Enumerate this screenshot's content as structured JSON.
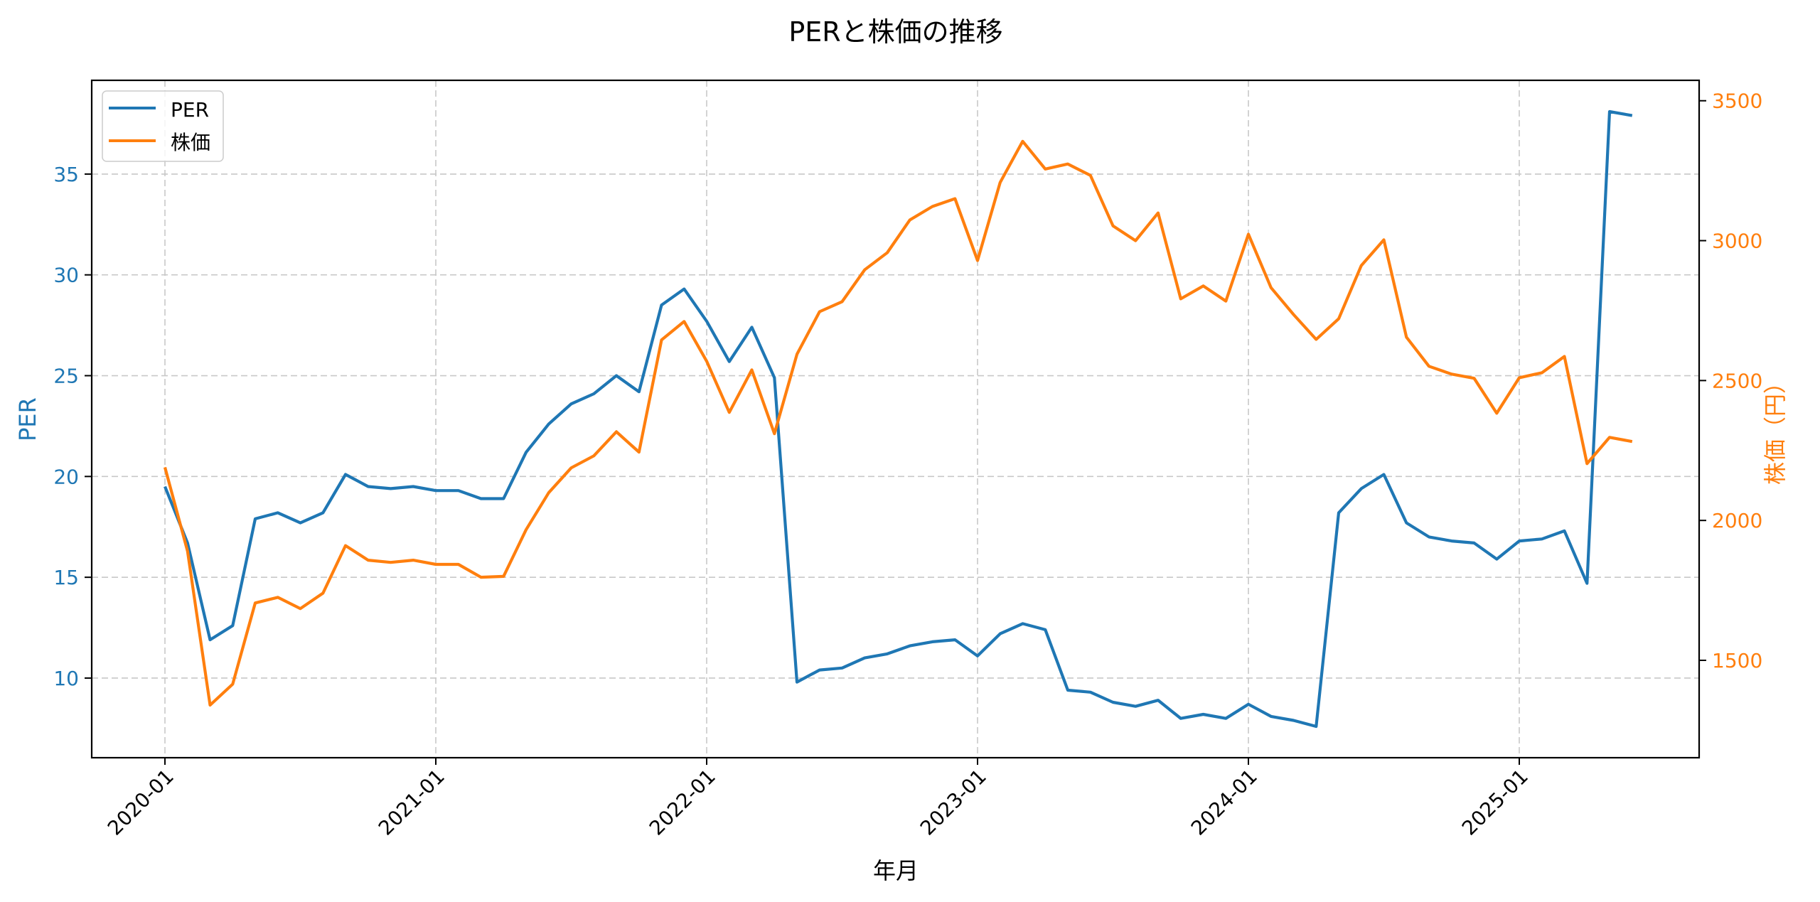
{
  "title": "PERと株価の推移",
  "colors": {
    "per": "#1f77b4",
    "price": "#ff7f0e",
    "grid": "#c8c8c8",
    "axis": "#000000",
    "background": "#ffffff"
  },
  "legend": {
    "items": [
      {
        "label": "PER",
        "color": "#1f77b4"
      },
      {
        "label": "株価",
        "color": "#ff7f0e"
      }
    ],
    "position": "upper left"
  },
  "axes": {
    "xlabel": "年月",
    "ylabel_left": "PER",
    "ylabel_right": "株価（円）",
    "xticks": [
      "2020-01",
      "2021-01",
      "2022-01",
      "2023-01",
      "2024-01",
      "2025-01"
    ],
    "yticks_left": [
      10,
      15,
      20,
      25,
      30,
      35
    ],
    "yticks_right": [
      1500,
      2000,
      2500,
      3000,
      3500
    ]
  },
  "chart_data": {
    "type": "line",
    "title": "PERと株価の推移",
    "xlabel": "年月",
    "ylabel": "PER",
    "ylabel_right": "株価（円）",
    "grid": true,
    "legend_position": "upper left",
    "ylim": [
      6.05,
      39.65
    ],
    "ylim_right": [
      1152,
      3573
    ],
    "x": [
      "2020-01",
      "2020-02",
      "2020-03",
      "2020-04",
      "2020-05",
      "2020-06",
      "2020-07",
      "2020-08",
      "2020-09",
      "2020-10",
      "2020-11",
      "2020-12",
      "2021-01",
      "2021-02",
      "2021-03",
      "2021-04",
      "2021-05",
      "2021-06",
      "2021-07",
      "2021-08",
      "2021-09",
      "2021-10",
      "2021-11",
      "2021-12",
      "2022-01",
      "2022-02",
      "2022-03",
      "2022-04",
      "2022-05",
      "2022-06",
      "2022-07",
      "2022-08",
      "2022-09",
      "2022-10",
      "2022-11",
      "2022-12",
      "2023-01",
      "2023-02",
      "2023-03",
      "2023-04",
      "2023-05",
      "2023-06",
      "2023-07",
      "2023-08",
      "2023-09",
      "2023-10",
      "2023-11",
      "2023-12",
      "2024-01",
      "2024-02",
      "2024-03",
      "2024-04",
      "2024-05",
      "2024-06",
      "2024-07",
      "2024-08",
      "2024-09",
      "2024-10",
      "2024-11",
      "2024-12",
      "2025-01",
      "2025-02",
      "2025-03",
      "2025-04",
      "2025-05",
      "2025-06"
    ],
    "series": [
      {
        "name": "PER",
        "axis": "left",
        "values": [
          19.5,
          16.7,
          11.9,
          12.6,
          17.9,
          18.2,
          17.7,
          18.2,
          20.1,
          19.5,
          19.4,
          19.5,
          19.3,
          19.3,
          18.9,
          18.9,
          21.2,
          22.6,
          23.6,
          24.1,
          25.0,
          24.2,
          28.5,
          29.3,
          27.7,
          25.7,
          27.4,
          24.9,
          9.8,
          10.4,
          10.5,
          11.0,
          11.2,
          11.6,
          11.8,
          11.9,
          11.1,
          12.2,
          12.7,
          12.4,
          9.4,
          9.3,
          8.8,
          8.6,
          8.9,
          8.0,
          8.2,
          8.0,
          8.7,
          8.1,
          7.9,
          7.6,
          18.2,
          19.4,
          20.1,
          17.7,
          17.0,
          16.8,
          16.7,
          15.9,
          16.8,
          16.9,
          17.3,
          14.7,
          38.1,
          37.9
        ]
      },
      {
        "name": "株価",
        "axis": "right",
        "values": [
          2190,
          1890,
          1340,
          1415,
          1705,
          1725,
          1685,
          1740,
          1910,
          1858,
          1850,
          1858,
          1843,
          1843,
          1797,
          1800,
          1967,
          2099,
          2188,
          2231,
          2317,
          2244,
          2645,
          2711,
          2569,
          2386,
          2538,
          2310,
          2594,
          2746,
          2782,
          2896,
          2957,
          3074,
          3122,
          3150,
          2929,
          3208,
          3355,
          3256,
          3274,
          3233,
          3053,
          3000,
          3099,
          2792,
          2838,
          2784,
          3023,
          2832,
          2736,
          2647,
          2721,
          2911,
          3003,
          2655,
          2551,
          2523,
          2508,
          2383,
          2510,
          2528,
          2586,
          2203,
          2297,
          2282
        ]
      }
    ]
  }
}
